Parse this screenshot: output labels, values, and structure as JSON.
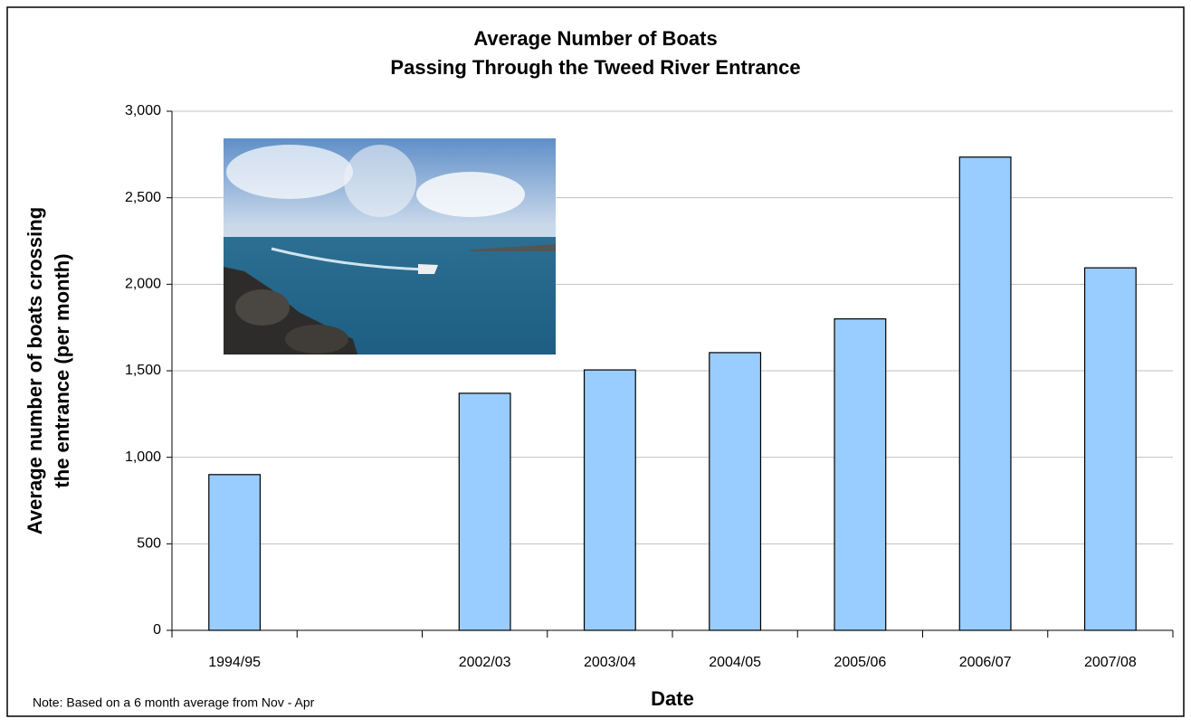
{
  "chart_data": {
    "type": "bar",
    "title": [
      "Average Number of Boats",
      "Passing Through the Tweed River Entrance"
    ],
    "y_label": [
      "Average number of boats crossing",
      "the entrance (per month)"
    ],
    "x_label": "Date",
    "note": "Note: Based on a 6 month average from Nov - Apr",
    "categories": [
      "1994/95",
      null,
      "2002/03",
      "2003/04",
      "2004/05",
      "2005/06",
      "2006/07",
      "2007/08"
    ],
    "values": [
      900,
      null,
      1370,
      1505,
      1605,
      1800,
      2735,
      2095
    ],
    "color": "#99ccff",
    "ylim": [
      0,
      3000
    ],
    "yticks": [
      0,
      500,
      {
        "value": 1000,
        "label": "1,000"
      },
      {
        "value": 1500,
        "label": "1,500"
      },
      {
        "value": 2000,
        "label": "2,000"
      },
      {
        "value": 2500,
        "label": "2,500"
      },
      {
        "value": 3000,
        "label": "3,000"
      }
    ],
    "grid": true
  }
}
